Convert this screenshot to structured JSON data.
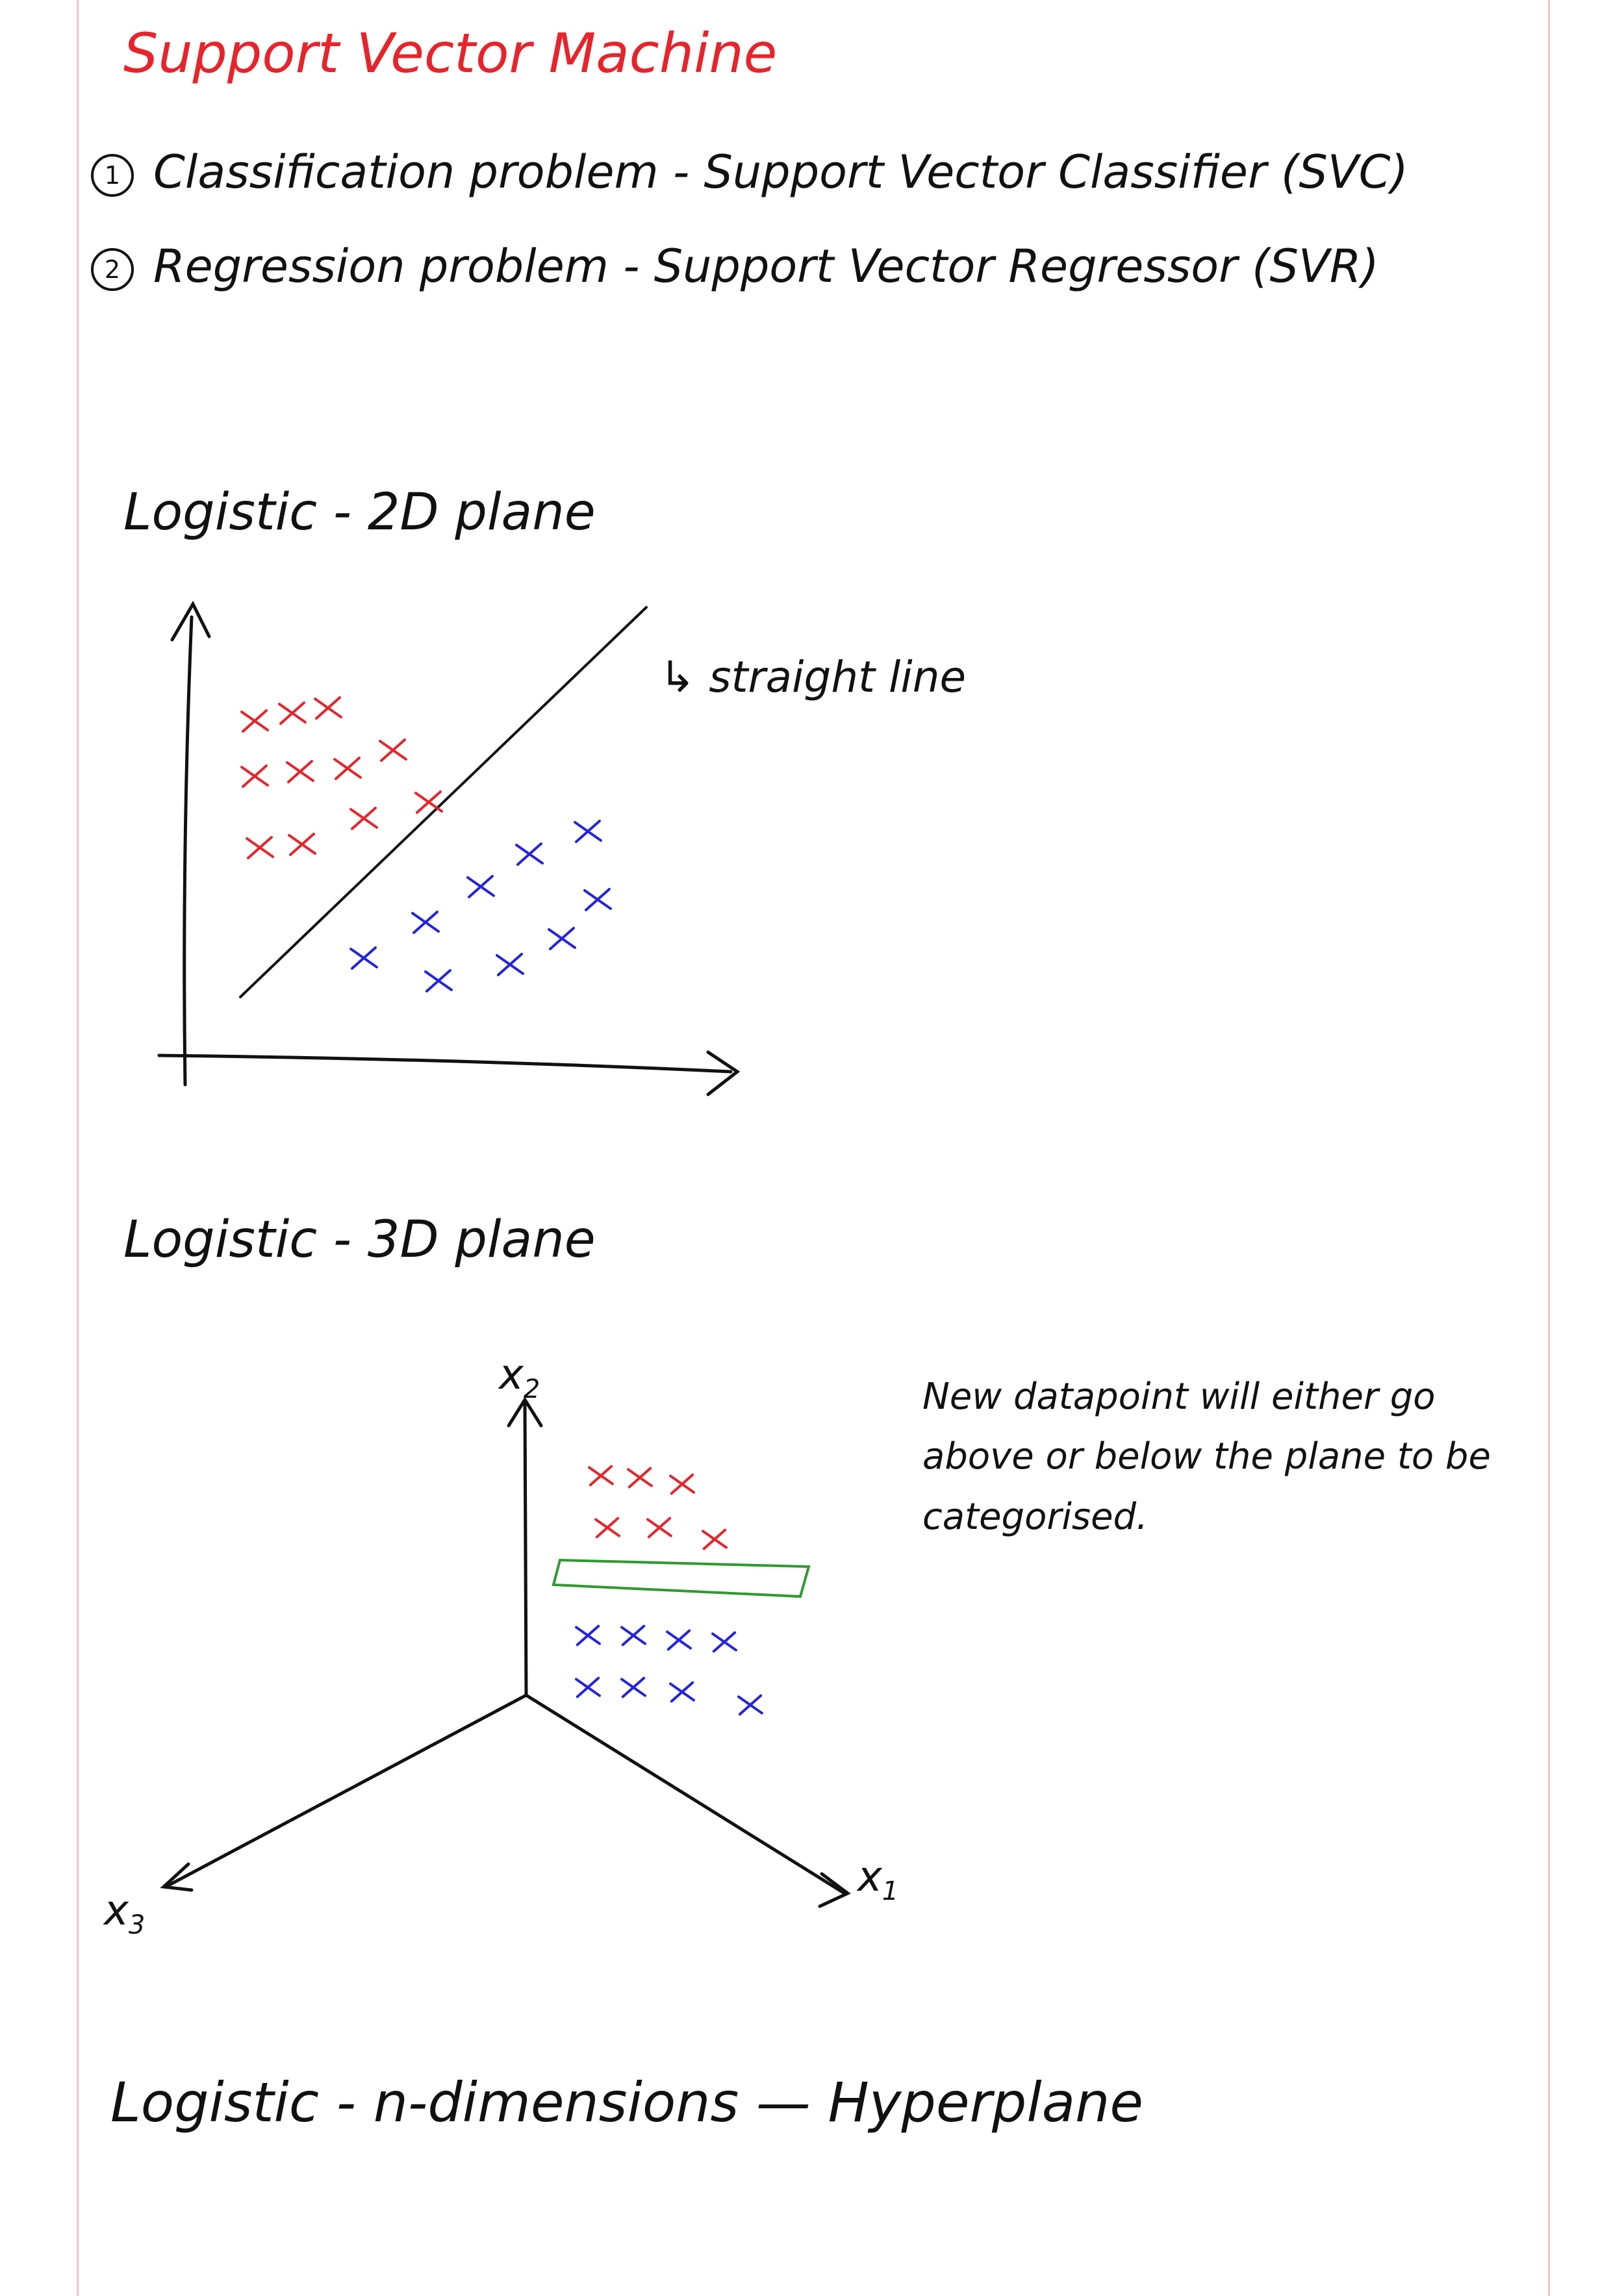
{
  "title": "Support Vector Machine",
  "items": [
    {
      "number": "1",
      "text": "Classification problem - Support Vector Classifier (SVC)"
    },
    {
      "number": "2",
      "text": "Regression problem - Support Vector Regressor (SVR)"
    }
  ],
  "section_2d": {
    "heading": "Logistic - 2D plane",
    "line_annotation": "↳ straight line"
  },
  "section_3d": {
    "heading": "Logistic - 3D plane",
    "axis_x1": "x",
    "axis_x1_sub": "1",
    "axis_x2": "x",
    "axis_x2_sub": "2",
    "axis_x3": "x",
    "axis_x3_sub": "3",
    "note": "New datapoint will either go above or below the plane to be categorised."
  },
  "section_nd": {
    "heading": "Logistic - n-dimensions — Hyperplane"
  },
  "colors": {
    "ink": "#111111",
    "red": "#e8232a",
    "blue": "#2323e0",
    "green": "#2e9a2e",
    "margin": "#f0c6cc"
  },
  "icons": [
    "circled-number-icon",
    "arrow-up-icon",
    "arrow-right-icon",
    "cross-marker-icon"
  ]
}
